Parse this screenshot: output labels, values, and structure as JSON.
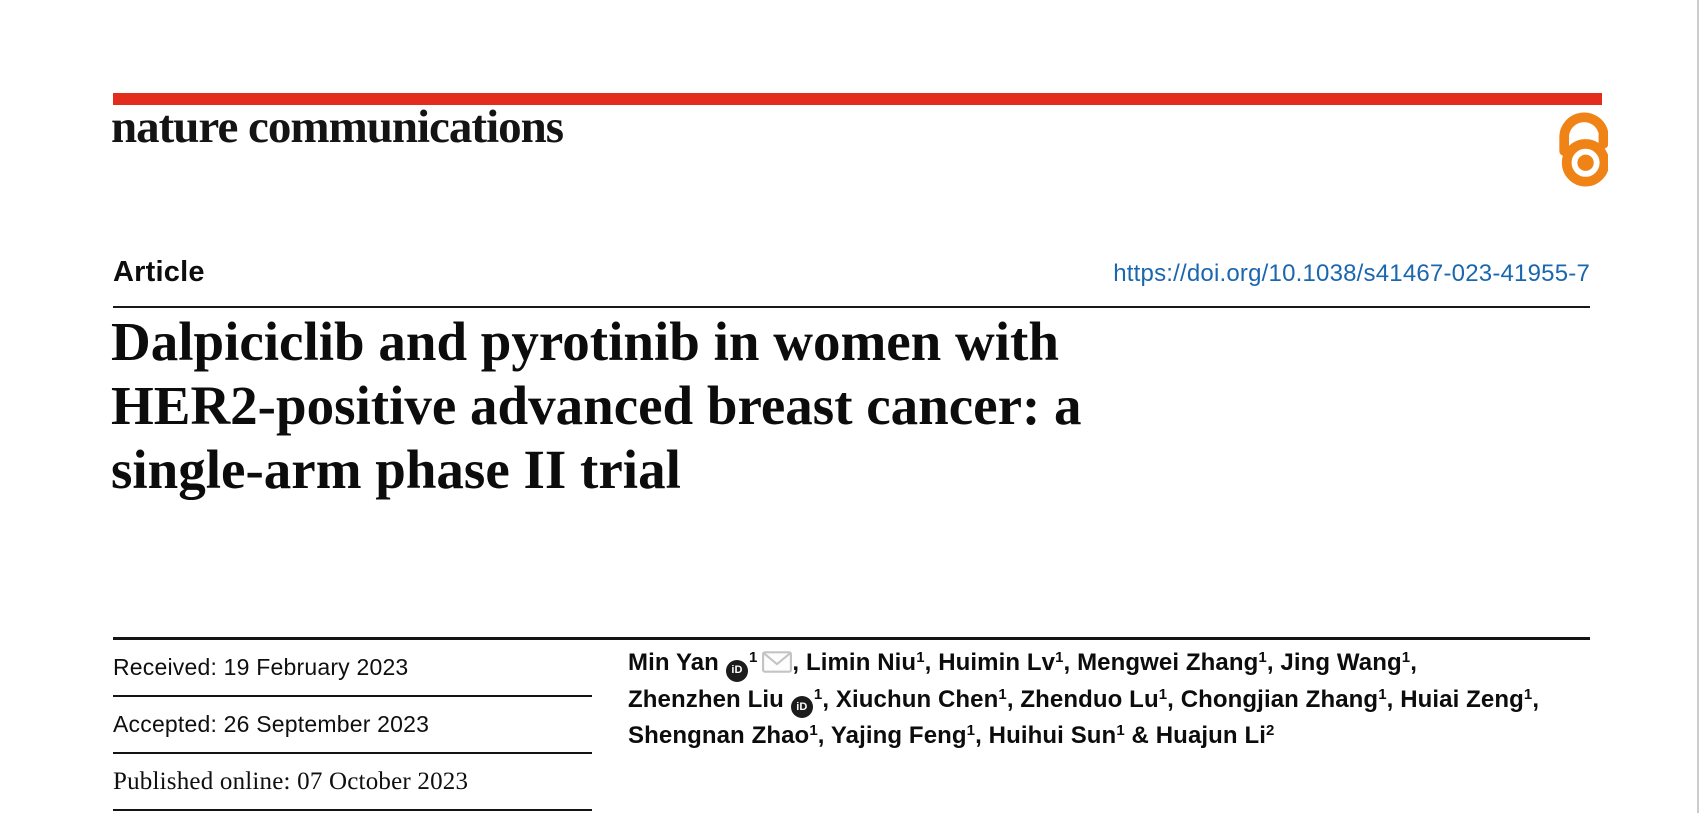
{
  "page": {
    "kind": "journal article first page (PDF view)",
    "colors": {
      "accent_red": "#e32b1e",
      "open_access_orange": "#ef8315",
      "link_blue": "#1a67b0"
    }
  },
  "masthead": {
    "journal_name": "nature communications"
  },
  "icons": {
    "open_access": "open-padlock",
    "orcid": "iD-badge",
    "envelope": "email-contact"
  },
  "header": {
    "article_label": "Article",
    "doi": "https://doi.org/10.1038/s41467-023-41955-7"
  },
  "title_lines": [
    "Dalpiciclib and pyrotinib in women with",
    "HER2-positive advanced breast cancer: a",
    "single-arm phase II trial"
  ],
  "title_full": "Dalpiciclib and pyrotinib in women with HER2-positive advanced breast cancer: a single-arm phase II trial",
  "dates": [
    {
      "text": "Received: 19 February 2023"
    },
    {
      "text": "Accepted: 26 September 2023"
    },
    {
      "text": "Published online: 07 October 2023"
    }
  ],
  "authors": {
    "lines": [
      [
        {
          "t": "Min Yan",
          "orcid": true,
          "sup": "1",
          "env": true,
          "tail": ", "
        },
        {
          "t": "Limin Niu",
          "sup": "1",
          "tail": ", "
        },
        {
          "t": "Huimin Lv",
          "sup": "1",
          "tail": ", "
        },
        {
          "t": "Mengwei Zhang",
          "sup": "1",
          "tail": ", "
        },
        {
          "t": "Jing Wang",
          "sup": "1",
          "tail": ","
        }
      ],
      [
        {
          "t": "Zhenzhen Liu",
          "orcid": true,
          "sup": "1",
          "tail": ", "
        },
        {
          "t": "Xiuchun Chen",
          "sup": "1",
          "tail": ", "
        },
        {
          "t": "Zhenduo Lu",
          "sup": "1",
          "tail": ", "
        },
        {
          "t": "Chongjian Zhang",
          "sup": "1",
          "tail": ", "
        },
        {
          "t": "Huiai Zeng",
          "sup": "1",
          "tail": ","
        }
      ],
      [
        {
          "t": "Shengnan Zhao",
          "sup": "1",
          "tail": ", "
        },
        {
          "t": "Yajing Feng",
          "sup": "1",
          "tail": ", "
        },
        {
          "t": "Huihui Sun",
          "sup": "1",
          "tail": " & "
        },
        {
          "t": "Huajun Li",
          "sup": "2",
          "tail": ""
        }
      ]
    ]
  }
}
